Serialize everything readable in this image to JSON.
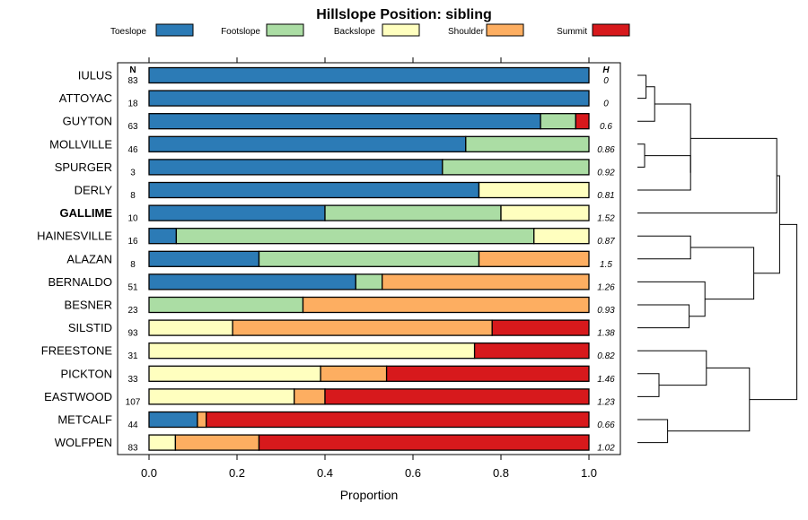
{
  "chart_data": {
    "type": "bar",
    "stacked": true,
    "orientation": "horizontal",
    "title": "Hillslope Position: sibling",
    "xlabel": "Proportion",
    "xlim": [
      0,
      1
    ],
    "xticks": [
      "0.0",
      "0.2",
      "0.4",
      "0.6",
      "0.8",
      "1.0"
    ],
    "n_header": "N",
    "h_header": "H",
    "highlight": "GALLIME",
    "legend": [
      {
        "name": "Toeslope",
        "color": "#2C7BB6"
      },
      {
        "name": "Footslope",
        "color": "#ABDDA4"
      },
      {
        "name": "Backslope",
        "color": "#FFFFBF"
      },
      {
        "name": "Shoulder",
        "color": "#FDAE61"
      },
      {
        "name": "Summit",
        "color": "#D7191C"
      }
    ],
    "categories": [
      "IULUS",
      "ATTOYAC",
      "GUYTON",
      "MOLLVILLE",
      "SPURGER",
      "DERLY",
      "GALLIME",
      "HAINESVILLE",
      "ALAZAN",
      "BERNALDO",
      "BESNER",
      "SILSTID",
      "FREESTONE",
      "PICKTON",
      "EASTWOOD",
      "METCALF",
      "WOLFPEN"
    ],
    "n": [
      "83",
      "18",
      "63",
      "46",
      "3",
      "8",
      "10",
      "16",
      "8",
      "51",
      "23",
      "93",
      "31",
      "33",
      "107",
      "44",
      "83"
    ],
    "h": [
      "0",
      "0",
      "0.6",
      "0.86",
      "0.92",
      "0.81",
      "1.52",
      "0.87",
      "1.5",
      "1.26",
      "0.93",
      "1.38",
      "0.82",
      "1.46",
      "1.23",
      "0.66",
      "1.02"
    ],
    "series": [
      {
        "name": "Toeslope",
        "values": [
          1.0,
          1.0,
          0.89,
          0.72,
          0.667,
          0.75,
          0.4,
          0.062,
          0.25,
          0.47,
          0.0,
          0.0,
          0.0,
          0.0,
          0.0,
          0.11,
          0.0
        ]
      },
      {
        "name": "Footslope",
        "values": [
          0.0,
          0.0,
          0.08,
          0.28,
          0.333,
          0.0,
          0.4,
          0.813,
          0.5,
          0.06,
          0.35,
          0.0,
          0.0,
          0.0,
          0.0,
          0.0,
          0.0
        ]
      },
      {
        "name": "Backslope",
        "values": [
          0.0,
          0.0,
          0.0,
          0.0,
          0.0,
          0.25,
          0.2,
          0.125,
          0.0,
          0.0,
          0.0,
          0.19,
          0.74,
          0.39,
          0.33,
          0.0,
          0.06
        ]
      },
      {
        "name": "Shoulder",
        "values": [
          0.0,
          0.0,
          0.0,
          0.0,
          0.0,
          0.0,
          0.0,
          0.0,
          0.25,
          0.47,
          0.65,
          0.59,
          0.0,
          0.15,
          0.07,
          0.02,
          0.19
        ]
      },
      {
        "name": "Summit",
        "values": [
          0.0,
          0.0,
          0.03,
          0.0,
          0.0,
          0.0,
          0.0,
          0.0,
          0.0,
          0.0,
          0.0,
          0.22,
          0.26,
          0.46,
          0.6,
          0.87,
          0.75
        ]
      }
    ],
    "dendrogram": {
      "type": "hierarchical clustering",
      "leaf_order": [
        "IULUS",
        "ATTOYAC",
        "GUYTON",
        "MOLLVILLE",
        "SPURGER",
        "DERLY",
        "GALLIME",
        "HAINESVILLE",
        "ALAZAN",
        "BERNALDO",
        "BESNER",
        "SILSTID",
        "FREESTONE",
        "PICKTON",
        "EASTWOOD",
        "METCALF",
        "WOLFPEN"
      ],
      "merges": [
        {
          "a": "IULUS",
          "b": "ATTOYAC",
          "height": 0.06
        },
        {
          "a": "IULUS+ATTOYAC",
          "b": "GUYTON",
          "height": 0.12
        },
        {
          "a": "MOLLVILLE",
          "b": "SPURGER",
          "height": 0.05
        },
        {
          "a": "MOLLVILLE+SPURGER",
          "b": "DERLY",
          "height": 0.37
        },
        {
          "a": "IULUS+ATTOYAC+GUYTON",
          "b": "MOLLVILLE+SPURGER+DERLY",
          "height": 0.37
        },
        {
          "a": "IULUS..DERLY",
          "b": "GALLIME",
          "height": 0.97
        },
        {
          "a": "HAINESVILLE",
          "b": "ALAZAN",
          "height": 0.37
        },
        {
          "a": "BESNER",
          "b": "SILSTID",
          "height": 0.36
        },
        {
          "a": "BERNALDO",
          "b": "BESNER+SILSTID",
          "height": 0.47
        },
        {
          "a": "HAINESVILLE+ALAZAN",
          "b": "BERNALDO+BESNER+SILSTID",
          "height": 0.81
        },
        {
          "a": "IULUS..GALLIME",
          "b": "HAINESVILLE..SILSTID",
          "height": 0.99
        },
        {
          "a": "PICKTON",
          "b": "EASTWOOD",
          "height": 0.15
        },
        {
          "a": "FREESTONE",
          "b": "PICKTON+EASTWOOD",
          "height": 0.48
        },
        {
          "a": "METCALF",
          "b": "WOLFPEN",
          "height": 0.21
        },
        {
          "a": "FREESTONE+PICKTON+EASTWOOD",
          "b": "METCALF+WOLFPEN",
          "height": 0.78
        },
        {
          "a": "IULUS..SILSTID",
          "b": "FREESTONE..WOLFPEN",
          "height": 1.11
        }
      ]
    }
  }
}
